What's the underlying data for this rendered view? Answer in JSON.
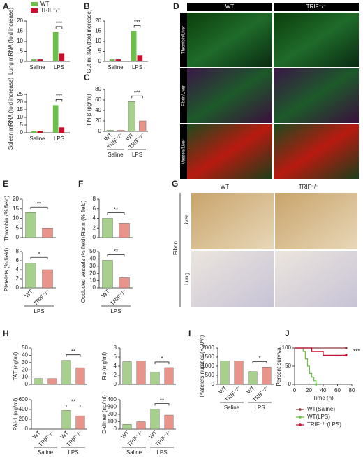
{
  "chart_data": [
    {
      "type": "bar",
      "panel": "A",
      "ylabel": "Lung mRNA (fold increase)",
      "categories": [
        "Saline",
        "LPS"
      ],
      "series": [
        {
          "name": "WT",
          "color": "#6cbf4a",
          "values": [
            1,
            14.5
          ]
        },
        {
          "name": "TRIF⁻/⁻",
          "color": "#c8102e",
          "values": [
            1,
            4
          ]
        }
      ],
      "ylim": [
        0,
        20
      ],
      "yticks": [
        0,
        5,
        10,
        15,
        20
      ],
      "significance": "***",
      "legend": true
    },
    {
      "type": "bar",
      "ylabel": "Spleen mRNA (fold increase)",
      "categories": [
        "Saline",
        "LPS"
      ],
      "series": [
        {
          "name": "WT",
          "color": "#6cbf4a",
          "values": [
            1,
            18
          ]
        },
        {
          "name": "TRIF⁻/⁻",
          "color": "#c8102e",
          "values": [
            1,
            3.5
          ]
        }
      ],
      "ylim": [
        0,
        25
      ],
      "yticks": [
        0,
        5,
        10,
        15,
        20,
        25
      ],
      "significance": "***"
    },
    {
      "type": "bar",
      "panel": "B",
      "ylabel": "Gut mRNA (fold increase)",
      "categories": [
        "Saline",
        "LPS"
      ],
      "series": [
        {
          "name": "WT",
          "color": "#6cbf4a",
          "values": [
            1,
            15
          ]
        },
        {
          "name": "TRIF⁻/⁻",
          "color": "#c8102e",
          "values": [
            1,
            3
          ]
        }
      ],
      "ylim": [
        0,
        20
      ],
      "yticks": [
        0,
        5,
        10,
        15,
        20
      ],
      "significance": "***"
    },
    {
      "type": "bar",
      "panel": "C",
      "ylabel": "IFN-β (pg/ml)",
      "categories": [
        "WT",
        "TRIF⁻/⁻",
        "WT",
        "TRIF⁻/⁻"
      ],
      "groups": [
        "Saline",
        "LPS"
      ],
      "values": [
        2,
        2,
        57,
        20
      ],
      "colors": [
        "#a8d08d",
        "#e8948a",
        "#a8d08d",
        "#e8948a"
      ],
      "ylim": [
        0,
        80
      ],
      "yticks": [
        0,
        20,
        40,
        60,
        80
      ],
      "significance": "***"
    },
    {
      "type": "bar",
      "panel": "E",
      "ylabel": "Thrombin (% field)",
      "values": [
        13,
        5
      ],
      "colors": [
        "#a8d08d",
        "#e8948a"
      ],
      "ylim": [
        0,
        20
      ],
      "yticks": [
        0,
        5,
        10,
        15,
        20
      ],
      "significance": "**"
    },
    {
      "type": "bar",
      "ylabel": "Platelets (% field)",
      "categories": [
        "WT",
        "TRIF⁻/⁻"
      ],
      "groups": [
        "LPS"
      ],
      "values": [
        5.5,
        4
      ],
      "colors": [
        "#a8d08d",
        "#e8948a"
      ],
      "ylim": [
        0,
        8
      ],
      "yticks": [
        0,
        2,
        4,
        6,
        8
      ],
      "significance": "*"
    },
    {
      "type": "bar",
      "panel": "F",
      "ylabel": "Fibrin (% field)",
      "values": [
        4,
        3
      ],
      "colors": [
        "#a8d08d",
        "#e8948a"
      ],
      "ylim": [
        0,
        8
      ],
      "yticks": [
        0,
        2,
        4,
        6,
        8
      ],
      "significance": "**"
    },
    {
      "type": "bar",
      "ylabel": "Occluded vessels (% field)",
      "categories": [
        "WT",
        "TRIF⁻/⁻"
      ],
      "groups": [
        "LPS"
      ],
      "values": [
        38,
        14
      ],
      "colors": [
        "#a8d08d",
        "#e8948a"
      ],
      "ylim": [
        0,
        50
      ],
      "yticks": [
        0,
        10,
        20,
        30,
        40,
        50
      ],
      "significance": "**"
    },
    {
      "type": "bar",
      "panel": "H",
      "ylabel": "TAT (ng/ml)",
      "values": [
        8,
        8,
        33,
        23
      ],
      "colors": [
        "#a8d08d",
        "#e8948a",
        "#a8d08d",
        "#e8948a"
      ],
      "ylim": [
        0,
        50
      ],
      "yticks": [
        0,
        10,
        20,
        30,
        40,
        50
      ],
      "significance": "**"
    },
    {
      "type": "bar",
      "ylabel": "Fib (mg/ml)",
      "values": [
        5,
        5.2,
        2.7,
        3.7
      ],
      "colors": [
        "#a8d08d",
        "#e8948a",
        "#a8d08d",
        "#e8948a"
      ],
      "ylim": [
        0,
        8
      ],
      "yticks": [
        0,
        2,
        4,
        6,
        8
      ],
      "significance": "*"
    },
    {
      "type": "bar",
      "ylabel": "PAI-1 (ng/ml)",
      "categories": [
        "WT",
        "TRIF⁻/⁻",
        "WT",
        "TRIF⁻/⁻"
      ],
      "groups": [
        "Saline",
        "LPS"
      ],
      "values": [
        3,
        3,
        380,
        270
      ],
      "colors": [
        "#a8d08d",
        "#e8948a",
        "#a8d08d",
        "#e8948a"
      ],
      "ylim": [
        0,
        600
      ],
      "yticks": [
        0,
        200,
        400,
        600
      ],
      "significance": "**"
    },
    {
      "type": "bar",
      "ylabel": "D-dimer (ng/ml)",
      "categories": [
        "WT",
        "TRIF⁻/⁻",
        "WT",
        "TRIF⁻/⁻"
      ],
      "groups": [
        "Saline",
        "LPS"
      ],
      "values": [
        65,
        100,
        270,
        190
      ],
      "colors": [
        "#a8d08d",
        "#e8948a",
        "#a8d08d",
        "#e8948a"
      ],
      "ylim": [
        0,
        400
      ],
      "yticks": [
        0,
        100,
        200,
        300,
        400
      ],
      "significance": "**"
    },
    {
      "type": "bar",
      "panel": "I",
      "ylabel": "Platelets number (×10⁹/l)",
      "categories": [
        "WT",
        "TRIF⁻/⁻",
        "WT",
        "TRIF⁻/⁻"
      ],
      "groups": [
        "Saline",
        "LPS"
      ],
      "values": [
        1300,
        1300,
        700,
        950
      ],
      "colors": [
        "#a8d08d",
        "#e8948a",
        "#a8d08d",
        "#e8948a"
      ],
      "ylim": [
        0,
        2000
      ],
      "yticks": [
        0,
        500,
        1000,
        1500,
        2000
      ],
      "significance": "*"
    },
    {
      "type": "line",
      "panel": "J",
      "ylabel": "Percent survival",
      "xlabel": "Time (h)",
      "xlim": [
        0,
        80
      ],
      "xticks": [
        0,
        20,
        40,
        60,
        80
      ],
      "ylim": [
        0,
        100
      ],
      "yticks": [
        0,
        50,
        100
      ],
      "significance": "***",
      "series": [
        {
          "name": "WT(Saline)",
          "color": "#8b3a3a",
          "x": [
            0,
            72
          ],
          "values": [
            100,
            100
          ]
        },
        {
          "name": "WT(LPS)",
          "color": "#6cbf4a",
          "x": [
            0,
            12,
            15,
            18,
            21,
            24,
            27,
            30
          ],
          "values": [
            100,
            90,
            70,
            50,
            30,
            20,
            10,
            0
          ]
        },
        {
          "name": "TRIF⁻/⁻(LPS)",
          "color": "#c8102e",
          "x": [
            0,
            24,
            40,
            72
          ],
          "values": [
            100,
            90,
            80,
            80
          ]
        }
      ]
    }
  ],
  "images": [
    {
      "panel": "D",
      "columns": [
        "WT",
        "TRIF⁻/⁻"
      ],
      "rows": [
        "Thrombin/Liver",
        "Fibrin/Liver",
        "Vessels/Liver"
      ]
    },
    {
      "panel": "G",
      "columns": [
        "WT",
        "TRIF⁻/⁻"
      ],
      "rows": [
        "Liver",
        "Lung"
      ],
      "side": "Fibrin"
    }
  ]
}
